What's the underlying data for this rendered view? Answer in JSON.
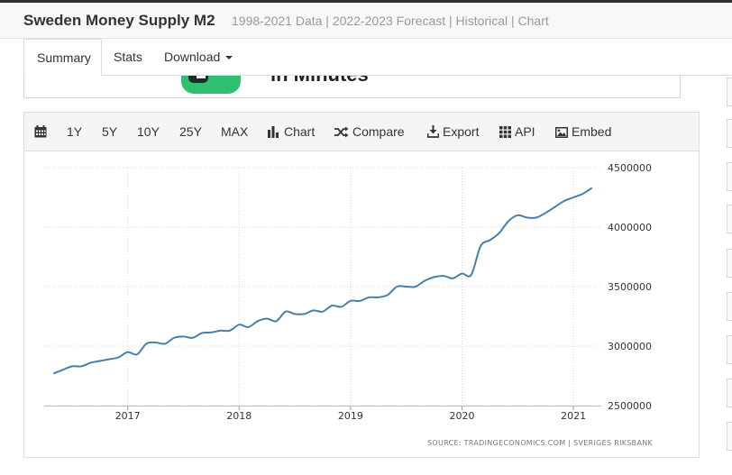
{
  "header": {
    "title": "Sweden Money Supply M2",
    "subtitle": "1998-2021 Data | 2022-2023 Forecast | Historical | Chart"
  },
  "tabs": [
    {
      "label": "Summary",
      "active": true
    },
    {
      "label": "Stats",
      "active": false
    },
    {
      "label": "Download",
      "active": false
    }
  ],
  "ad": {
    "text": "in Minutes"
  },
  "toolbar": {
    "calendar_icon": "calendar-icon",
    "ranges": [
      "1Y",
      "5Y",
      "10Y",
      "25Y",
      "MAX"
    ],
    "chart_label": "Chart",
    "compare_label": "Compare",
    "export_label": "Export",
    "api_label": "API",
    "embed_label": "Embed"
  },
  "chart_data": {
    "type": "line",
    "title": "",
    "xlabel": "",
    "ylabel": "",
    "x_ticks": [
      "2017",
      "2018",
      "2019",
      "2020",
      "2021"
    ],
    "y_ticks": [
      "4500000",
      "4000000",
      "3500000",
      "3000000",
      "2500000"
    ],
    "ylim": [
      2500000,
      4500000
    ],
    "xlim": [
      "2016-04",
      "2021-04"
    ],
    "grid": true,
    "color": "#4a7fa8",
    "series": [
      {
        "name": "",
        "x": [
          "2016-05",
          "2016-06",
          "2016-07",
          "2016-08",
          "2016-09",
          "2016-10",
          "2016-11",
          "2016-12",
          "2017-01",
          "2017-02",
          "2017-03",
          "2017-04",
          "2017-05",
          "2017-06",
          "2017-07",
          "2017-08",
          "2017-09",
          "2017-10",
          "2017-11",
          "2017-12",
          "2018-01",
          "2018-02",
          "2018-03",
          "2018-04",
          "2018-05",
          "2018-06",
          "2018-07",
          "2018-08",
          "2018-09",
          "2018-10",
          "2018-11",
          "2018-12",
          "2019-01",
          "2019-02",
          "2019-03",
          "2019-04",
          "2019-05",
          "2019-06",
          "2019-07",
          "2019-08",
          "2019-09",
          "2019-10",
          "2019-11",
          "2019-12",
          "2020-01",
          "2020-02",
          "2020-03",
          "2020-04",
          "2020-05",
          "2020-06",
          "2020-07",
          "2020-08",
          "2020-09",
          "2020-10",
          "2020-11",
          "2020-12",
          "2021-01",
          "2021-02",
          "2021-03"
        ],
        "values": [
          2770000,
          2800000,
          2830000,
          2830000,
          2860000,
          2875000,
          2890000,
          2905000,
          2950000,
          2930000,
          3020000,
          3030000,
          3020000,
          3070000,
          3080000,
          3070000,
          3110000,
          3115000,
          3130000,
          3130000,
          3180000,
          3160000,
          3210000,
          3230000,
          3210000,
          3290000,
          3270000,
          3270000,
          3300000,
          3290000,
          3340000,
          3330000,
          3380000,
          3380000,
          3410000,
          3410000,
          3430000,
          3500000,
          3500000,
          3500000,
          3550000,
          3580000,
          3590000,
          3570000,
          3610000,
          3600000,
          3840000,
          3890000,
          3950000,
          4050000,
          4100000,
          4080000,
          4080000,
          4120000,
          4170000,
          4220000,
          4250000,
          4280000,
          4330000
        ]
      }
    ]
  },
  "source": "SOURCE: TRADINGECONOMICS.COM | SVERIGES RIKSBANK"
}
